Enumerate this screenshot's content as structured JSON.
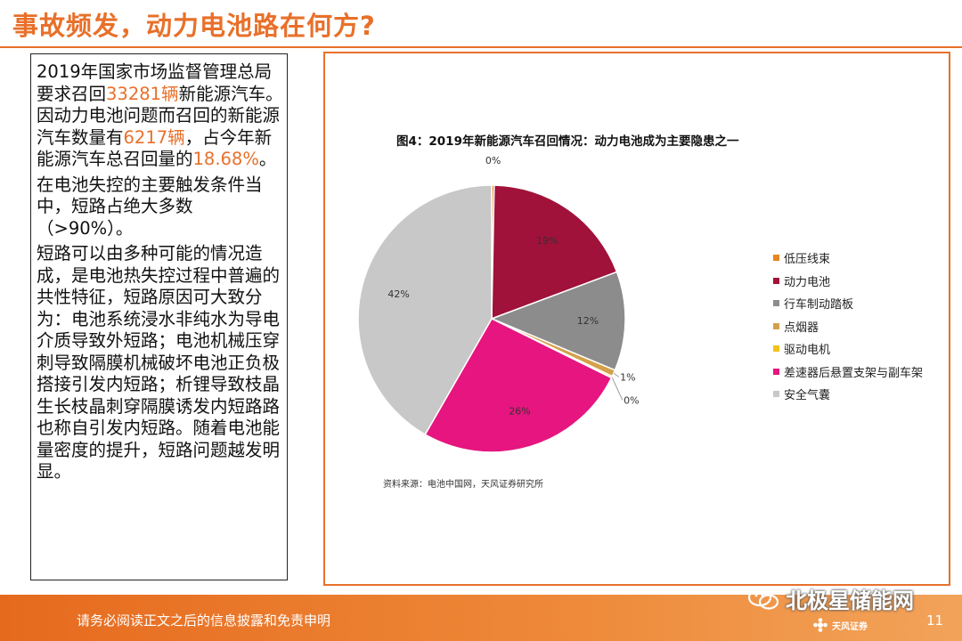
{
  "slide": {
    "title": "事故频发，动力电池路在何方?",
    "page_number": "11",
    "footer_text": "请务必阅读正文之后的信息披露和免责申明",
    "watermark": "北极星储能网",
    "logo_text": "天风证券"
  },
  "left_text": {
    "p1_a": "2019年国家市场监督管理总局要求召回",
    "p1_hl1": "33281辆",
    "p1_b": "新能源汽车。因动力电池问题而召回的新能源汽车数量有",
    "p1_hl2": "6217辆",
    "p1_c": "，占今年新能源汽车总召回量的",
    "p1_hl3": "18.68%",
    "p1_d": "。",
    "p2": "在电池失控的主要触发条件当中，短路占绝大多数（>90%）。",
    "p3": "短路可以由多种可能的情况造成，是电池热失控过程中普遍的共性特征，短路原因可大致分为：电池系统浸水非纯水为导电介质导致外短路；电池机械压穿刺导致隔膜机械破坏电池正负极搭接引发内短路；析锂导致枝晶生长枝晶刺穿隔膜诱发内短路路也称自引发内短路。随着电池能量密度的提升，短路问题越发明显。"
  },
  "figure": {
    "title": "图4：2019年新能源汽车召回情况：动力电池成为主要隐患之一",
    "source": "资料来源：电池中国网，天风证券研究所"
  },
  "chart_data": {
    "type": "pie",
    "title": "图4：2019年新能源汽车召回情况：动力电池成为主要隐患之一",
    "legend_position": "right",
    "slices": [
      {
        "name": "低压线束",
        "value": 0.3,
        "label": "0%",
        "color": "#e8851e"
      },
      {
        "name": "动力电池",
        "value": 19,
        "label": "19%",
        "color": "#a0123a"
      },
      {
        "name": "行车制动踏板",
        "value": 12,
        "label": "12%",
        "color": "#8c8c8c"
      },
      {
        "name": "点烟器",
        "value": 0.8,
        "label": "1%",
        "color": "#d4a04a"
      },
      {
        "name": "驱动电机",
        "value": 0.2,
        "label": "0%",
        "color": "#f2c21b"
      },
      {
        "name": "差速器后悬置支架与副车架",
        "value": 26,
        "label": "26%",
        "color": "#e6157f"
      },
      {
        "name": "安全气囊",
        "value": 41.7,
        "label": "42%",
        "color": "#c8c8c8"
      }
    ]
  }
}
